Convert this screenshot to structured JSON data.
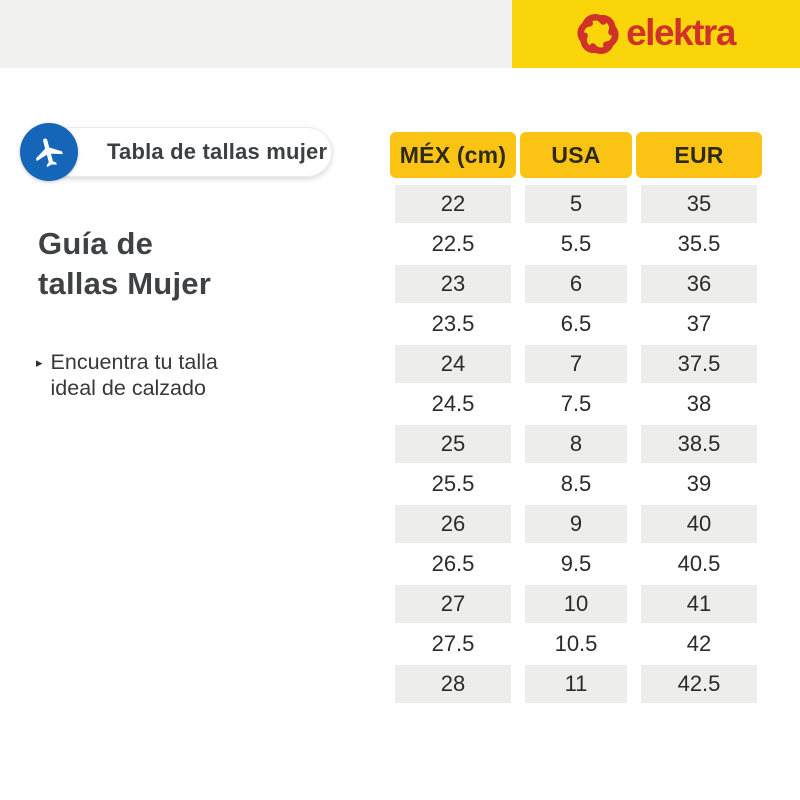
{
  "brand": {
    "logo_text": "elektra",
    "logo_color": "#D0312A",
    "panel_yellow": "#FAD50A"
  },
  "badge": {
    "label": "Tabla de tallas mujer",
    "icon": "airplane-icon",
    "circle_color": "#1565B8"
  },
  "intro": {
    "title_line1": "Guía de",
    "title_line2": "tallas Mujer",
    "bullet_line1": "Encuentra tu talla",
    "bullet_line2": "ideal de calzado"
  },
  "colors": {
    "yellow": "#FAD50A",
    "panel-gray": "#F1F1EF",
    "brand-red": "#D0312A",
    "blue": "#1565B8",
    "amber": "#FBC314",
    "row-gray": "#EDEDEB"
  },
  "chart_data": {
    "type": "table",
    "title": "Guía de tallas Mujer",
    "columns": [
      "MÉX (cm)",
      "USA",
      "EUR"
    ],
    "rows": [
      [
        "22",
        "5",
        "35"
      ],
      [
        "22.5",
        "5.5",
        "35.5"
      ],
      [
        "23",
        "6",
        "36"
      ],
      [
        "23.5",
        "6.5",
        "37"
      ],
      [
        "24",
        "7",
        "37.5"
      ],
      [
        "24.5",
        "7.5",
        "38"
      ],
      [
        "25",
        "8",
        "38.5"
      ],
      [
        "25.5",
        "8.5",
        "39"
      ],
      [
        "26",
        "9",
        "40"
      ],
      [
        "26.5",
        "9.5",
        "40.5"
      ],
      [
        "27",
        "10",
        "41"
      ],
      [
        "27.5",
        "10.5",
        "42"
      ],
      [
        "28",
        "11",
        "42.5"
      ]
    ],
    "layout": {
      "header_bg": "#FBC314",
      "alt_row_bg": "#EDEDEB",
      "stripe_start": "first-row"
    }
  }
}
